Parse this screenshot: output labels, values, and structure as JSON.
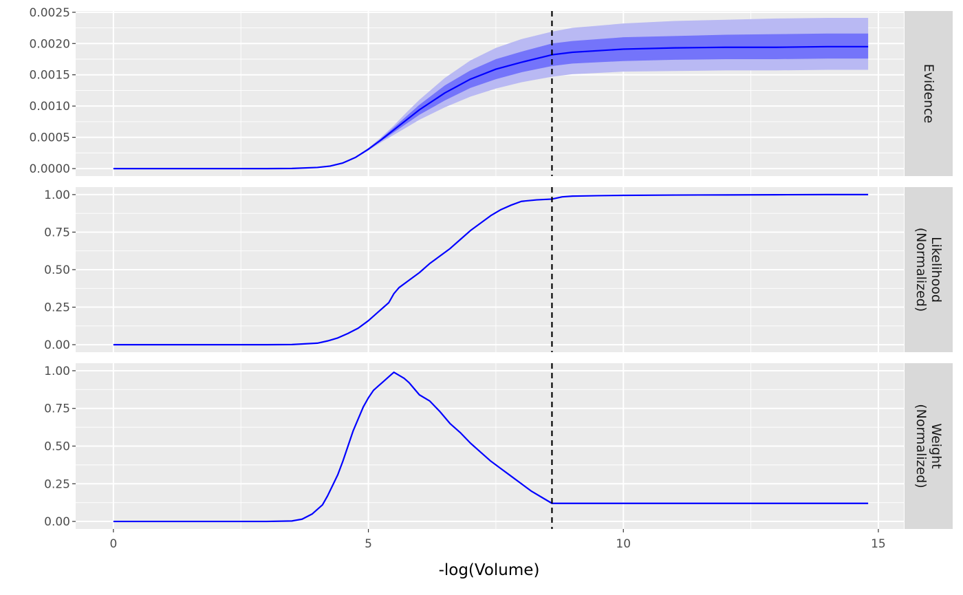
{
  "chart_data": {
    "type": "line",
    "xlabel": "-log(Volume)",
    "xlim": [
      -0.74,
      15.5
    ],
    "x_ticks": [
      0,
      5,
      10,
      15
    ],
    "x_tick_labels": [
      "0",
      "5",
      "10",
      "15"
    ],
    "vline_x": 8.6,
    "colors": {
      "line": "#0000ff",
      "band_outer": "#b9b9f3",
      "band_inner": "#7474fa",
      "panel_bg": "#ebebeb",
      "grid": "#ffffff",
      "strip_bg": "#d9d9d9",
      "vline": "#000000"
    },
    "panels": [
      {
        "strip": [
          "Evidence"
        ],
        "ylim": [
          -0.00012,
          0.00252
        ],
        "y_ticks": [
          0,
          0.0005,
          0.001,
          0.0015,
          0.002,
          0.0025
        ],
        "y_tick_labels": [
          "0.0000",
          "0.0005",
          "0.0010",
          "0.0015",
          "0.0020",
          "0.0025"
        ],
        "series": [
          {
            "x": [
              0,
              1,
              2,
              3,
              3.5,
              4,
              4.25,
              4.5,
              4.75,
              5,
              5.25,
              5.5,
              5.75,
              6,
              6.5,
              7,
              7.5,
              8,
              8.6,
              9,
              10,
              11,
              12,
              13,
              14,
              14.8
            ],
            "y": [
              0,
              0,
              0,
              0,
              2e-06,
              1.8e-05,
              4e-05,
              9e-05,
              0.00018,
              0.00031,
              0.00046,
              0.00062,
              0.00078,
              0.00094,
              0.00121,
              0.00143,
              0.00159,
              0.0017,
              0.00182,
              0.00186,
              0.00191,
              0.00193,
              0.00194,
              0.00194,
              0.00195,
              0.00195
            ],
            "band_outer_lo": [
              0,
              0,
              0,
              0,
              2e-06,
              1.8e-05,
              4e-05,
              9e-05,
              0.00017,
              0.00029,
              0.00042,
              0.00054,
              0.00066,
              0.00078,
              0.00098,
              0.00115,
              0.00128,
              0.00138,
              0.00147,
              0.00151,
              0.00155,
              0.00156,
              0.00157,
              0.00157,
              0.00158,
              0.00158
            ],
            "band_outer_hi": [
              0,
              0,
              0,
              0,
              2e-06,
              1.8e-05,
              4e-05,
              9e-05,
              0.00019,
              0.00033,
              0.0005,
              0.00069,
              0.0009,
              0.0011,
              0.00145,
              0.00173,
              0.00193,
              0.00207,
              0.00219,
              0.00225,
              0.00232,
              0.00236,
              0.00238,
              0.0024,
              0.00241,
              0.00241
            ],
            "band_inner_lo": [
              0,
              0,
              0,
              0,
              2e-06,
              1.8e-05,
              4e-05,
              9e-05,
              0.000175,
              0.0003,
              0.00044,
              0.00058,
              0.00072,
              0.00086,
              0.00109,
              0.00129,
              0.00143,
              0.00154,
              0.00164,
              0.00168,
              0.00172,
              0.00174,
              0.00175,
              0.00175,
              0.00176,
              0.00176
            ],
            "band_inner_hi": [
              0,
              0,
              0,
              0,
              2e-06,
              1.8e-05,
              4e-05,
              9e-05,
              0.000185,
              0.00032,
              0.00048,
              0.00066,
              0.00084,
              0.00102,
              0.00133,
              0.00157,
              0.00175,
              0.00187,
              0.002,
              0.00204,
              0.0021,
              0.00212,
              0.00214,
              0.00215,
              0.00216,
              0.00216
            ]
          }
        ]
      },
      {
        "strip": [
          "Likelihood",
          "(Normalized)"
        ],
        "ylim": [
          -0.05,
          1.05
        ],
        "y_ticks": [
          0,
          0.25,
          0.5,
          0.75,
          1
        ],
        "y_tick_labels": [
          "0.00",
          "0.25",
          "0.50",
          "0.75",
          "1.00"
        ],
        "series": [
          {
            "x": [
              0,
              1,
              2,
              3,
              3.5,
              4,
              4.2,
              4.4,
              4.6,
              4.8,
              5,
              5.2,
              5.4,
              5.5,
              5.6,
              5.8,
              6,
              6.2,
              6.4,
              6.6,
              6.8,
              7,
              7.2,
              7.4,
              7.6,
              7.8,
              8,
              8.3,
              8.6,
              8.8,
              9,
              9.5,
              10,
              11,
              12,
              13,
              14,
              14.8
            ],
            "y": [
              0,
              0,
              0,
              0,
              0.001,
              0.01,
              0.025,
              0.045,
              0.075,
              0.11,
              0.16,
              0.22,
              0.28,
              0.34,
              0.38,
              0.43,
              0.48,
              0.54,
              0.59,
              0.64,
              0.7,
              0.76,
              0.81,
              0.86,
              0.9,
              0.93,
              0.955,
              0.965,
              0.97,
              0.985,
              0.99,
              0.993,
              0.995,
              0.997,
              0.998,
              0.999,
              1,
              1
            ]
          }
        ]
      },
      {
        "strip": [
          "Weight",
          "(Normalized)"
        ],
        "ylim": [
          -0.05,
          1.05
        ],
        "y_ticks": [
          0,
          0.25,
          0.5,
          0.75,
          1
        ],
        "y_tick_labels": [
          "0.00",
          "0.25",
          "0.50",
          "0.75",
          "1.00"
        ],
        "series": [
          {
            "x": [
              0,
              1,
              2,
              3,
              3.5,
              3.7,
              3.9,
              4.1,
              4.2,
              4.3,
              4.4,
              4.5,
              4.6,
              4.7,
              4.8,
              4.9,
              5,
              5.1,
              5.2,
              5.3,
              5.4,
              5.5,
              5.6,
              5.7,
              5.8,
              5.9,
              6,
              6.2,
              6.4,
              6.6,
              6.8,
              7,
              7.2,
              7.4,
              7.6,
              7.8,
              8,
              8.2,
              8.4,
              8.6,
              8.8,
              9,
              10,
              11,
              12,
              13,
              14,
              14.8
            ],
            "y": [
              0,
              0,
              0,
              0,
              0.003,
              0.015,
              0.05,
              0.11,
              0.17,
              0.24,
              0.31,
              0.4,
              0.5,
              0.6,
              0.68,
              0.76,
              0.82,
              0.87,
              0.9,
              0.93,
              0.96,
              0.99,
              0.97,
              0.95,
              0.92,
              0.88,
              0.84,
              0.8,
              0.73,
              0.65,
              0.59,
              0.52,
              0.46,
              0.4,
              0.35,
              0.3,
              0.25,
              0.2,
              0.16,
              0.12,
              0.12,
              0.12,
              0.12,
              0.12,
              0.12,
              0.12,
              0.12,
              0.12
            ]
          }
        ]
      }
    ]
  }
}
